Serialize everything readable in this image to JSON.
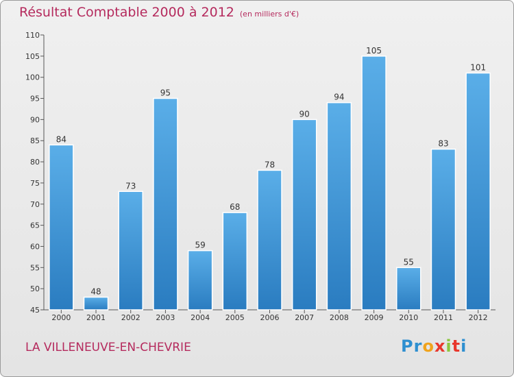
{
  "chart_data": {
    "type": "bar",
    "title": "Résultat Comptable 2000 à 2012",
    "unit": "(en milliers d'€)",
    "categories": [
      "2000",
      "2001",
      "2002",
      "2003",
      "2004",
      "2005",
      "2006",
      "2007",
      "2008",
      "2009",
      "2010",
      "2011",
      "2012"
    ],
    "values": [
      84,
      48,
      73,
      95,
      59,
      68,
      78,
      90,
      94,
      105,
      55,
      83,
      101
    ],
    "ylim": [
      45,
      110
    ],
    "yticks": [
      45,
      50,
      55,
      60,
      65,
      70,
      75,
      80,
      85,
      90,
      95,
      100,
      105,
      110
    ],
    "xlabel": "",
    "ylabel": "",
    "bar_color": "#3f95d6",
    "grid": false
  },
  "place_name": "LA VILLENEUVE-EN-CHEVRIE",
  "logo": {
    "letters": [
      "P",
      "r",
      "o",
      "x",
      "i",
      "t",
      "i"
    ],
    "colors": [
      "#2e8fd0",
      "#2e8fd0",
      "#f0a31c",
      "#e8372c",
      "#8cc63f",
      "#e8372c",
      "#2e8fd0"
    ]
  },
  "colors": {
    "title": "#b52a5d",
    "axis": "#444444"
  }
}
